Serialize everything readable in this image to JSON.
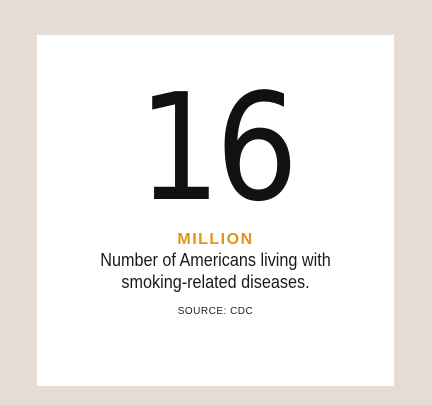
{
  "stat": {
    "value": "16",
    "unit": "MILLION",
    "description": "Number of Americans living with smoking-related diseases.",
    "source": "SOURCE: CDC"
  },
  "colors": {
    "background": "#e6dcd6",
    "card": "#ffffff",
    "accent": "#e0941c",
    "text": "#111111"
  }
}
